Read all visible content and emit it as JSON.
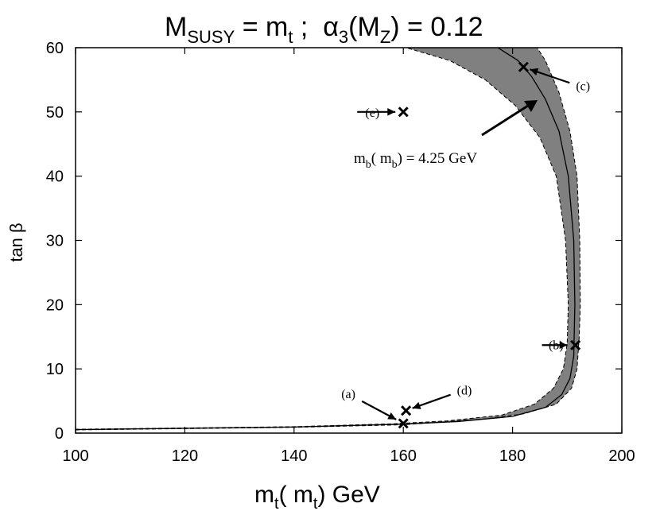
{
  "chart_data": {
    "type": "line",
    "title": {
      "main": "M",
      "main_sub": "SUSY",
      "eq1": " = m",
      "eq1_sub": "t",
      "sep": " ;  ",
      "alpha": "α",
      "alpha_sub": "3",
      "paren_open": "(M",
      "paren_sub": "Z",
      "rest": ") = 0.12"
    },
    "xlabel": {
      "m": "m",
      "sub1": "t",
      "mid": "( m",
      "sub2": "t",
      "end": ") GeV"
    },
    "ylabel": "tan β",
    "xlim": [
      100,
      200
    ],
    "ylim": [
      0,
      60
    ],
    "xticks": [
      100,
      120,
      140,
      160,
      180,
      200
    ],
    "yticks": [
      0,
      10,
      20,
      30,
      40,
      50,
      60
    ],
    "grid": false,
    "band_color": "#808080",
    "series": [
      {
        "style": "solid",
        "x": [
          100,
          140,
          160,
          170,
          180,
          186,
          189,
          190.5,
          191.2,
          191.4,
          191.2,
          190.2,
          188.5,
          186,
          183.5,
          181,
          177.3
        ],
        "y": [
          0.55,
          0.95,
          1.4,
          1.8,
          2.6,
          4,
          6,
          8.5,
          12,
          20,
          30,
          40,
          47,
          52,
          55.5,
          58,
          60
        ]
      },
      {
        "style": "dashed",
        "x": [
          100,
          140,
          160,
          175,
          182,
          188,
          190.8,
          191.8,
          192.2,
          192.4,
          192.3,
          191.8,
          190.5,
          188.5,
          186,
          184.5
        ],
        "y": [
          0.5,
          0.9,
          1.3,
          2.2,
          3,
          4.5,
          7,
          10,
          15,
          20,
          30,
          40,
          47,
          53,
          58,
          60
        ]
      },
      {
        "style": "dashed",
        "x": [
          100,
          140,
          158,
          168,
          178,
          184,
          187.5,
          189.3,
          190,
          190.2,
          189.7,
          188,
          185,
          180.5,
          175,
          168.5,
          160.5
        ],
        "y": [
          0.6,
          1.0,
          1.45,
          1.9,
          2.8,
          4.5,
          7,
          10,
          14,
          20,
          30,
          40,
          46,
          51,
          55,
          58,
          60
        ]
      }
    ],
    "points": [
      {
        "label": "(a)",
        "x": 160,
        "y": 1.5
      },
      {
        "label": "(b)",
        "x": 191.5,
        "y": 13.7
      },
      {
        "label": "(c)",
        "x": 182,
        "y": 57
      },
      {
        "label": "(d)",
        "x": 160.5,
        "y": 3.5
      },
      {
        "label": "(e)",
        "x": 160,
        "y": 50
      }
    ],
    "annotation": {
      "m": "m",
      "sub1": "b",
      "mid": "( m",
      "sub2": "b",
      "end": ") = 4.25 GeV"
    }
  }
}
